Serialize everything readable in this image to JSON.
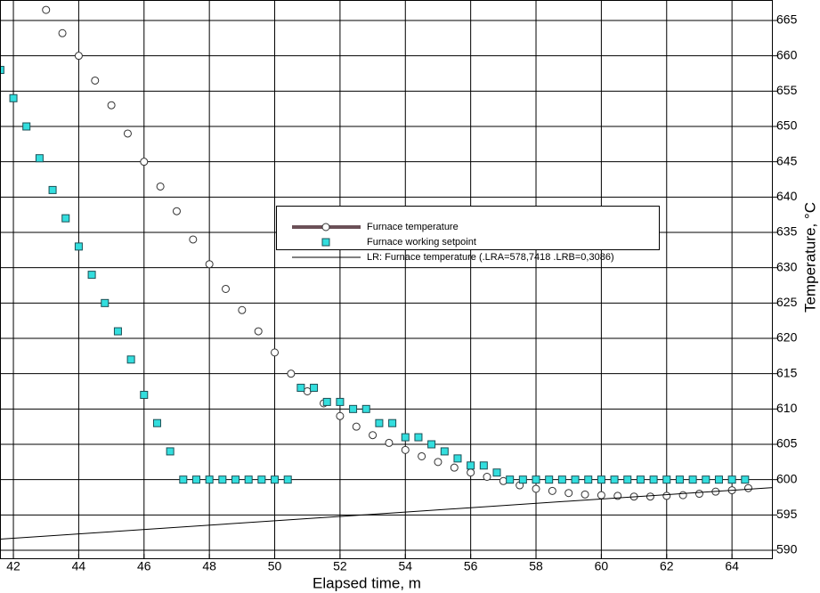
{
  "chart_data": {
    "type": "scatter",
    "x_label": "Elapsed time, m",
    "y_label": "Temperature, °C",
    "xlim": [
      41.59,
      65.25
    ],
    "ylim": [
      588.74,
      667.9
    ],
    "xticks": [
      42,
      44,
      46,
      48,
      50,
      52,
      54,
      56,
      58,
      60,
      62,
      64
    ],
    "yticks": [
      590,
      595,
      600,
      605,
      610,
      615,
      620,
      625,
      630,
      635,
      640,
      645,
      650,
      655,
      660,
      665
    ],
    "grid": true,
    "series": [
      {
        "name": "Furnace temperature",
        "color": "#6b5057",
        "marker": "circle",
        "x": [
          43.0,
          43.5,
          44.0,
          44.5,
          45.0,
          45.5,
          46.0,
          46.5,
          47.0,
          47.5,
          48.0,
          48.5,
          49.0,
          49.5,
          50.0,
          50.5,
          51.0,
          51.5,
          52.0,
          52.5,
          53.0,
          53.5,
          54.0,
          54.5,
          55.0,
          55.5,
          56.0,
          56.5,
          57.0,
          57.5,
          58.0,
          58.5,
          59.0,
          59.5,
          60.0,
          60.5,
          61.0,
          61.5,
          62.0,
          62.5,
          63.0,
          63.5,
          64.0,
          64.5
        ],
        "values": [
          666.5,
          663.2,
          660,
          656.5,
          653,
          649,
          645,
          641.5,
          638,
          634,
          630.5,
          627,
          624,
          621,
          618,
          615,
          612.5,
          610.8,
          609,
          607.5,
          606.3,
          605.2,
          604.2,
          603.3,
          602.5,
          601.7,
          601,
          600.4,
          599.8,
          599.2,
          598.7,
          598.4,
          598.1,
          597.9,
          597.8,
          597.7,
          597.6,
          597.6,
          597.7,
          597.8,
          598.0,
          598.3,
          598.5,
          598.8
        ]
      },
      {
        "name": "Furnace working setpoint",
        "color": "#33dede",
        "marker": "square",
        "x": [
          41.6,
          42.0,
          42.4,
          42.8,
          43.2,
          43.6,
          44.0,
          44.4,
          44.8,
          45.2,
          45.6,
          46.0,
          46.4,
          46.8,
          47.2,
          47.6,
          48.0,
          48.4,
          48.8,
          49.2,
          49.6,
          50.0,
          50.4,
          50.8,
          51.2,
          51.6,
          52.0,
          52.4,
          52.8,
          53.2,
          53.6,
          54.0,
          54.4,
          54.8,
          55.2,
          55.6,
          56.0,
          56.4,
          56.8,
          57.2,
          57.6,
          58.0,
          58.4,
          58.8,
          59.2,
          59.6,
          60.0,
          60.4,
          60.8,
          61.2,
          61.6,
          62.0,
          62.4,
          62.8,
          63.2,
          63.6,
          64.0,
          64.4
        ],
        "values": [
          658,
          654,
          650,
          645.5,
          641,
          637,
          633,
          629,
          625,
          621,
          617,
          612,
          608,
          604,
          600,
          600,
          600,
          600,
          600,
          600,
          600,
          600,
          600,
          613,
          613,
          611,
          611,
          610,
          610,
          608,
          608,
          606,
          606,
          605,
          604,
          603,
          602,
          602,
          601,
          600,
          600,
          600,
          600,
          600,
          600,
          600,
          600,
          600,
          600,
          600,
          600,
          600,
          600,
          600,
          600,
          600,
          600,
          600
        ]
      },
      {
        "name": "LR: Furnace temperature (.LRA=578,7418 .LRB=0,3086)",
        "color": "#000000",
        "marker": "line",
        "intercept": 578.7418,
        "slope": 0.3086
      }
    ]
  }
}
